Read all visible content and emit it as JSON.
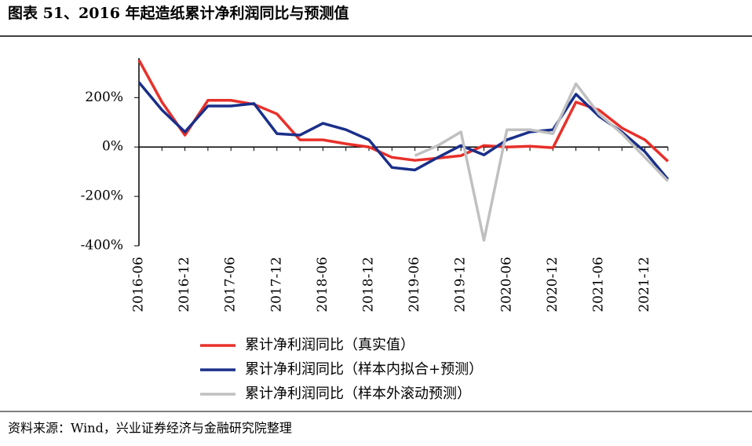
{
  "chart_data": {
    "type": "line",
    "title": "图表 51、2016 年起造纸累计净利润同比与预测值",
    "source": "资料来源：Wind，兴业证券经济与金融研究院整理",
    "categories": [
      "2016-06",
      null,
      "2016-12",
      null,
      "2017-06",
      null,
      "2017-12",
      null,
      "2018-06",
      null,
      "2018-12",
      null,
      "2019-06",
      null,
      "2019-12",
      null,
      "2020-06",
      null,
      "2020-12",
      null,
      "2021-06",
      null,
      "2021-12",
      null
    ],
    "series": [
      {
        "name": "累计净利润同比（真实值）",
        "color": "#e8302a",
        "values": [
          352,
          182,
          48,
          189,
          189,
          173,
          134,
          29,
          29,
          13,
          0,
          -42,
          -54,
          -45,
          -35,
          6,
          0,
          3,
          -3,
          182,
          150,
          77,
          29,
          -58
        ]
      },
      {
        "name": "累计净利润同比（样本内拟合+预测）",
        "color": "#1a2f8a",
        "values": [
          262,
          150,
          61,
          166,
          166,
          176,
          54,
          48,
          96,
          70,
          29,
          -83,
          -93,
          -42,
          6,
          -32,
          29,
          61,
          70,
          214,
          125,
          61,
          -19,
          -131
        ]
      },
      {
        "name": "累计净利润同比（样本外滚动预测）",
        "color": "#c0c0c0",
        "values": [
          null,
          null,
          null,
          null,
          null,
          null,
          null,
          null,
          null,
          null,
          null,
          null,
          -35,
          6,
          61,
          -378,
          70,
          70,
          54,
          256,
          134,
          54,
          -42,
          -138
        ]
      }
    ],
    "ylim": [
      -400,
      360
    ],
    "yticks": [
      {
        "value": -400,
        "label": "-400%"
      },
      {
        "value": -200,
        "label": "-200%"
      },
      {
        "value": 0,
        "label": "0%"
      },
      {
        "value": 200,
        "label": "200%"
      }
    ]
  }
}
